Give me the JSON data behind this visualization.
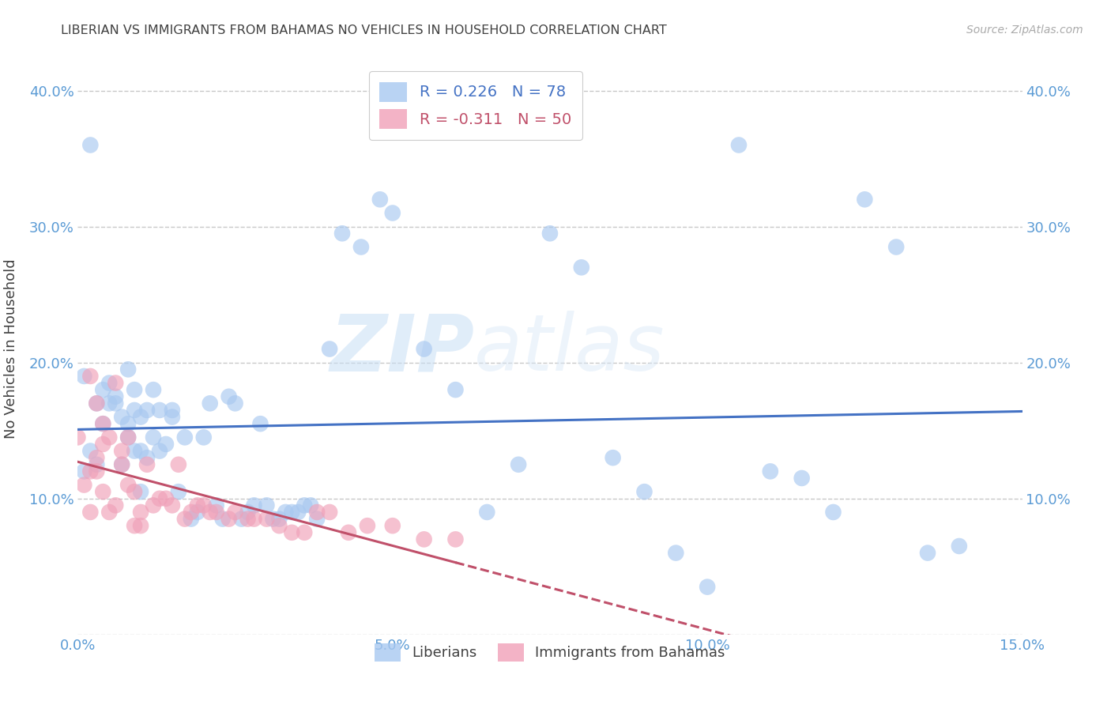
{
  "title": "LIBERIAN VS IMMIGRANTS FROM BAHAMAS NO VEHICLES IN HOUSEHOLD CORRELATION CHART",
  "source": "Source: ZipAtlas.com",
  "ylabel_label": "No Vehicles in Household",
  "xlim": [
    0.0,
    0.15
  ],
  "ylim": [
    0.0,
    0.42
  ],
  "xticks": [
    0.0,
    0.05,
    0.1,
    0.15
  ],
  "xticklabels": [
    "0.0%",
    "5.0%",
    "10.0%",
    "15.0%"
  ],
  "yticks": [
    0.0,
    0.1,
    0.2,
    0.3,
    0.4
  ],
  "yticklabels": [
    "",
    "10.0%",
    "20.0%",
    "30.0%",
    "40.0%"
  ],
  "grid_color": "#c8c8c8",
  "background_color": "#ffffff",
  "watermark_zip": "ZIP",
  "watermark_atlas": "atlas",
  "legend_R1": "R = 0.226",
  "legend_N1": "N = 78",
  "legend_R2": "R = -0.311",
  "legend_N2": "N = 50",
  "liberian_color": "#a8c8f0",
  "bahamas_color": "#f0a0b8",
  "liberian_line_color": "#4472c4",
  "bahamas_line_color": "#c0506a",
  "title_color": "#404040",
  "tick_color": "#5b9bd5",
  "liberian_x": [
    0.001,
    0.002,
    0.003,
    0.003,
    0.004,
    0.004,
    0.005,
    0.005,
    0.006,
    0.006,
    0.007,
    0.007,
    0.008,
    0.008,
    0.008,
    0.009,
    0.009,
    0.009,
    0.01,
    0.01,
    0.01,
    0.011,
    0.011,
    0.012,
    0.012,
    0.013,
    0.013,
    0.014,
    0.015,
    0.015,
    0.016,
    0.017,
    0.018,
    0.019,
    0.02,
    0.021,
    0.022,
    0.023,
    0.024,
    0.025,
    0.026,
    0.027,
    0.028,
    0.029,
    0.03,
    0.031,
    0.032,
    0.033,
    0.034,
    0.035,
    0.036,
    0.037,
    0.038,
    0.04,
    0.042,
    0.045,
    0.048,
    0.05,
    0.055,
    0.06,
    0.065,
    0.07,
    0.075,
    0.08,
    0.085,
    0.09,
    0.095,
    0.1,
    0.105,
    0.11,
    0.115,
    0.12,
    0.125,
    0.13,
    0.135,
    0.14,
    0.002,
    0.001
  ],
  "liberian_y": [
    0.19,
    0.135,
    0.17,
    0.125,
    0.18,
    0.155,
    0.185,
    0.17,
    0.17,
    0.175,
    0.125,
    0.16,
    0.145,
    0.155,
    0.195,
    0.135,
    0.165,
    0.18,
    0.135,
    0.16,
    0.105,
    0.13,
    0.165,
    0.145,
    0.18,
    0.135,
    0.165,
    0.14,
    0.16,
    0.165,
    0.105,
    0.145,
    0.085,
    0.09,
    0.145,
    0.17,
    0.095,
    0.085,
    0.175,
    0.17,
    0.085,
    0.09,
    0.095,
    0.155,
    0.095,
    0.085,
    0.085,
    0.09,
    0.09,
    0.09,
    0.095,
    0.095,
    0.085,
    0.21,
    0.295,
    0.285,
    0.32,
    0.31,
    0.21,
    0.18,
    0.09,
    0.125,
    0.295,
    0.27,
    0.13,
    0.105,
    0.06,
    0.035,
    0.36,
    0.12,
    0.115,
    0.09,
    0.32,
    0.285,
    0.06,
    0.065,
    0.36,
    0.12
  ],
  "bahamas_x": [
    0.001,
    0.002,
    0.002,
    0.003,
    0.003,
    0.004,
    0.004,
    0.005,
    0.005,
    0.006,
    0.006,
    0.007,
    0.007,
    0.008,
    0.008,
    0.009,
    0.009,
    0.01,
    0.01,
    0.011,
    0.012,
    0.013,
    0.014,
    0.015,
    0.016,
    0.017,
    0.018,
    0.019,
    0.02,
    0.021,
    0.022,
    0.024,
    0.025,
    0.027,
    0.028,
    0.03,
    0.032,
    0.034,
    0.036,
    0.038,
    0.04,
    0.043,
    0.046,
    0.05,
    0.055,
    0.06,
    0.002,
    0.003,
    0.004,
    0.0
  ],
  "bahamas_y": [
    0.11,
    0.09,
    0.12,
    0.13,
    0.17,
    0.105,
    0.14,
    0.09,
    0.145,
    0.095,
    0.185,
    0.125,
    0.135,
    0.11,
    0.145,
    0.08,
    0.105,
    0.08,
    0.09,
    0.125,
    0.095,
    0.1,
    0.1,
    0.095,
    0.125,
    0.085,
    0.09,
    0.095,
    0.095,
    0.09,
    0.09,
    0.085,
    0.09,
    0.085,
    0.085,
    0.085,
    0.08,
    0.075,
    0.075,
    0.09,
    0.09,
    0.075,
    0.08,
    0.08,
    0.07,
    0.07,
    0.19,
    0.12,
    0.155,
    0.145
  ]
}
